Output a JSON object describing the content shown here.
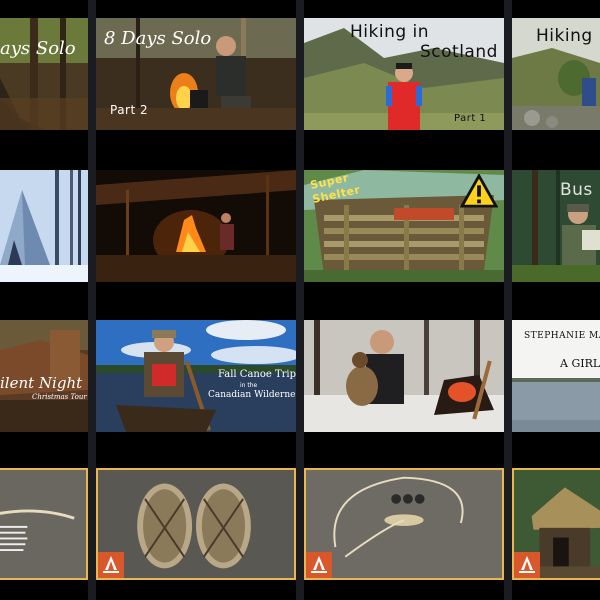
{
  "thumbnails": {
    "r1c0": {
      "title": "ays Solo"
    },
    "r1c1": {
      "title": "8 Days Solo",
      "part": "Part 2"
    },
    "r1c2": {
      "title_line1": "Hiking in",
      "title_line2": "Scotland",
      "part": "Part 1"
    },
    "r1c3": {
      "title": "Hiking"
    },
    "r2c2": {
      "badge_line1": "Super",
      "badge_line2": "Shelter"
    },
    "r2c3": {
      "title": "Bus"
    },
    "r3c0": {
      "title": "ilent Night",
      "subtitle": "Christmas Tour"
    },
    "r3c1": {
      "line1": "Fall Canoe Trip",
      "line2": "in the",
      "line3": "Canadian Wilderness"
    },
    "r3c3": {
      "line1": "STEPHANIE MARGITH",
      "line2": "A GIRL"
    }
  },
  "colors": {
    "background": "#000000",
    "gutter": "#1b1c21",
    "frame_gold": "#e9b74c",
    "logo_orange": "#d9582b"
  },
  "icons": {
    "warning": "warning-triangle-icon",
    "logo": "campfire-logo-icon"
  }
}
